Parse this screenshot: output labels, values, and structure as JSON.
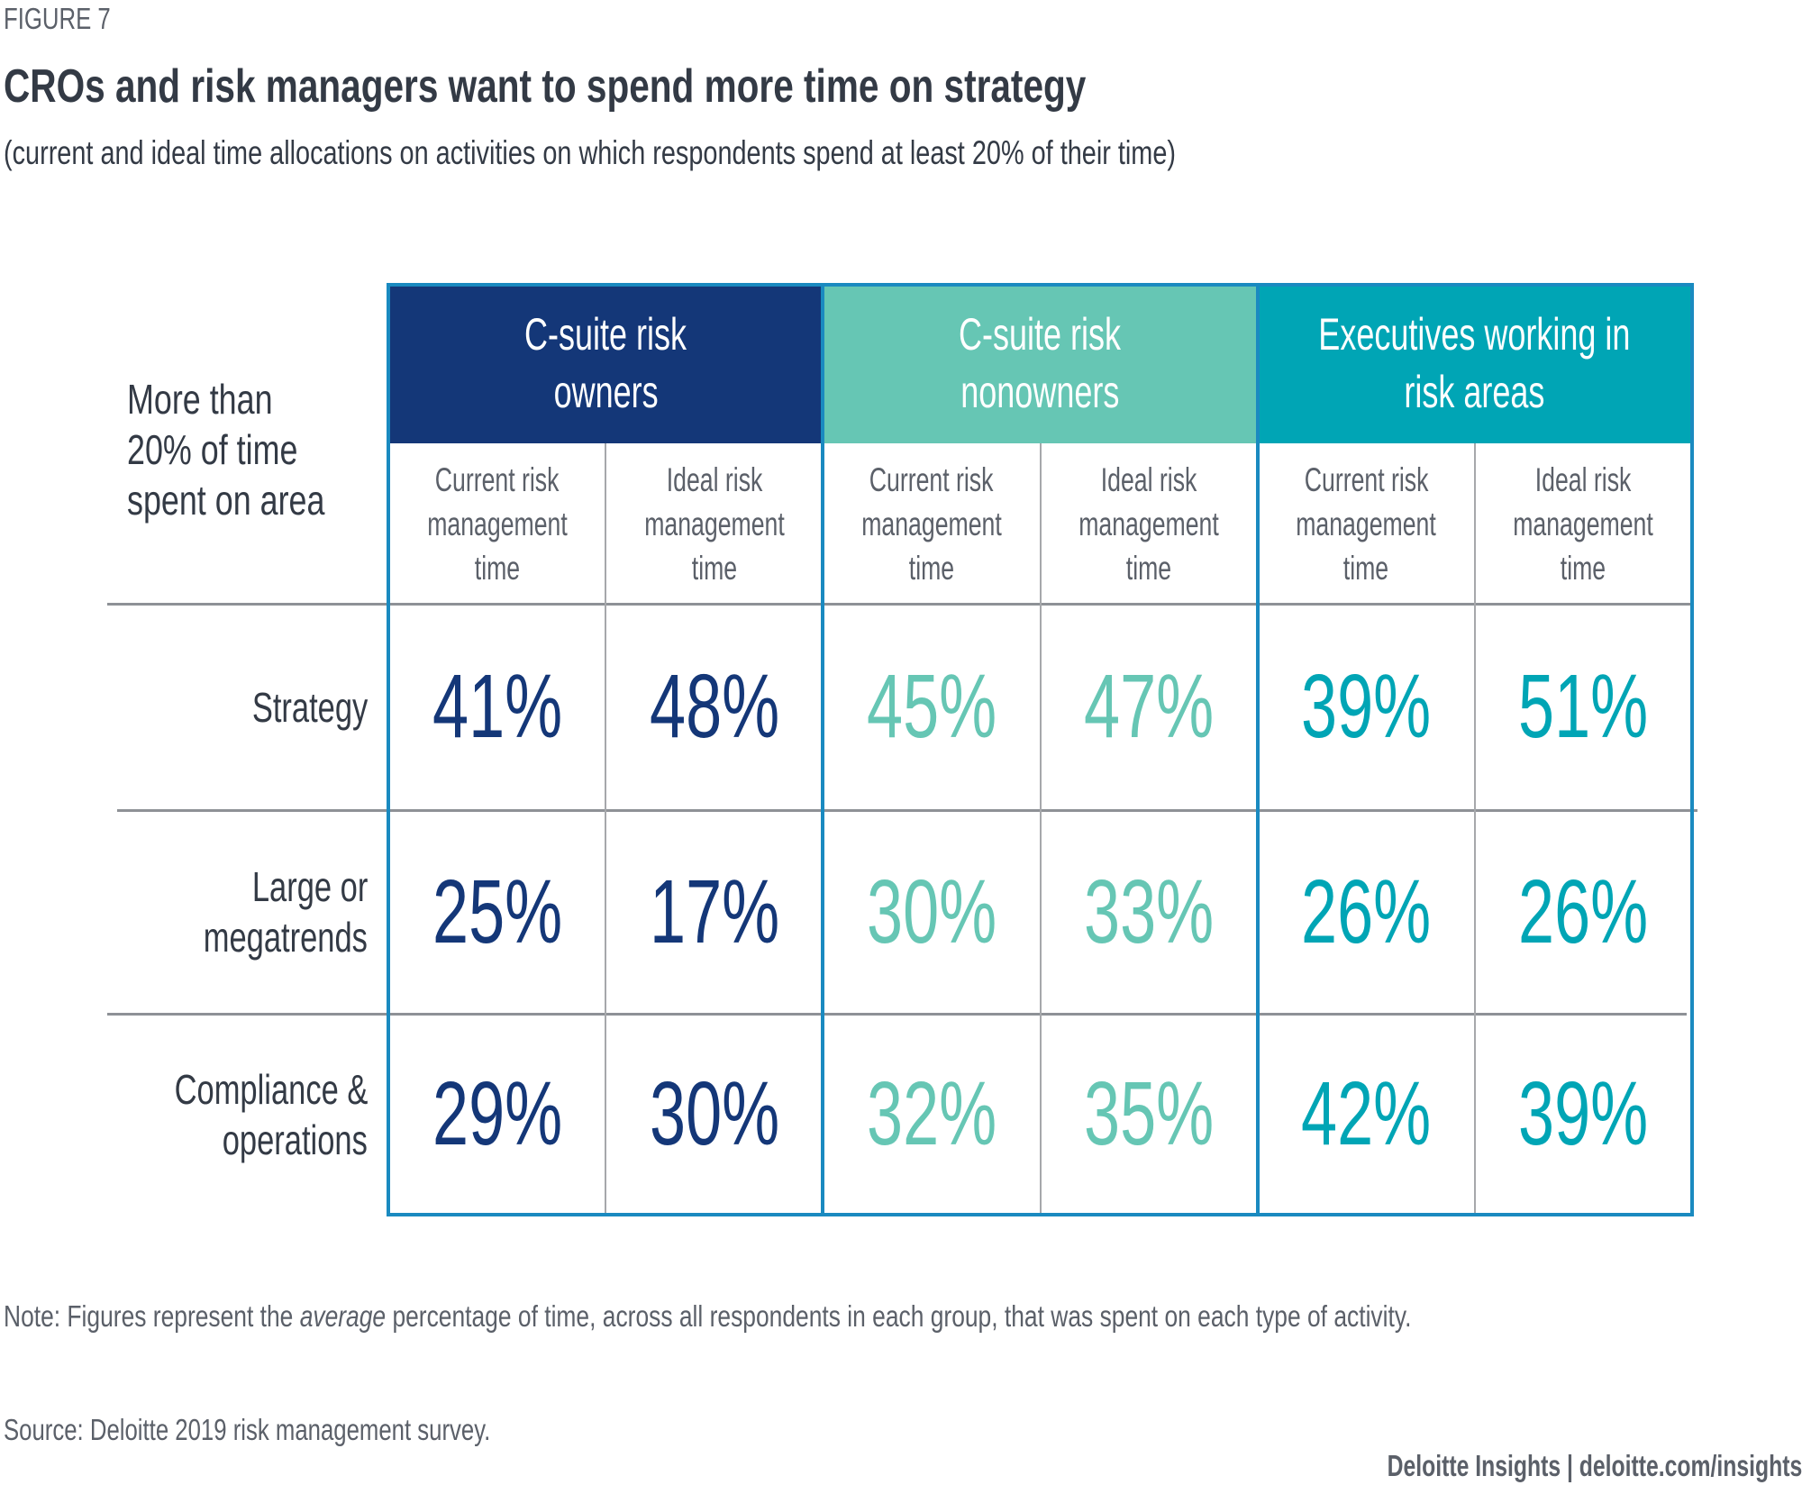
{
  "figure_label": "FIGURE 7",
  "title": "CROs and risk managers want to spend more time on strategy",
  "subtitle": "(current and ideal time allocations on activities on which respondents spend at least 20% of their time)",
  "stub_header_lines": [
    "More than",
    "20% of time",
    "spent on area"
  ],
  "colors": {
    "c_suite_owners": "#143778",
    "c_suite_nonowners": "#66c6b4",
    "executives_risk_areas": "#00a5b5",
    "border": "#1a8ac0"
  },
  "chart_data": {
    "type": "table",
    "title": "CROs and risk managers want to spend more time on strategy",
    "subtitle": "(current and ideal time allocations on activities on which respondents spend at least 20% of their time)",
    "row_header": "More than 20% of time spent on area",
    "groups": [
      {
        "name_lines": [
          "C-suite risk",
          "owners"
        ],
        "name": "C-suite risk owners",
        "color": "#143778"
      },
      {
        "name_lines": [
          "C-suite risk",
          "nonowners"
        ],
        "name": "C-suite risk nonowners",
        "color": "#66c6b4"
      },
      {
        "name_lines": [
          "Executives working in",
          "risk areas"
        ],
        "name": "Executives working in risk areas",
        "color": "#00a5b5"
      }
    ],
    "sub_columns": [
      {
        "lines": [
          "Current risk",
          "management",
          "time"
        ],
        "name": "Current risk management time"
      },
      {
        "lines": [
          "Ideal risk",
          "management",
          "time"
        ],
        "name": "Ideal risk management time"
      }
    ],
    "rows": [
      {
        "label_lines": [
          "Strategy"
        ],
        "label": "Strategy",
        "values": [
          41,
          48,
          45,
          47,
          39,
          51
        ]
      },
      {
        "label_lines": [
          "Large or",
          "megatrends"
        ],
        "label": "Large or megatrends",
        "values": [
          25,
          17,
          30,
          33,
          26,
          26
        ]
      },
      {
        "label_lines": [
          "Compliance &",
          "operations"
        ],
        "label": "Compliance & operations",
        "values": [
          29,
          30,
          32,
          35,
          42,
          39
        ]
      }
    ],
    "unit": "%"
  },
  "note_prefix": "Note: Figures represent the ",
  "note_italic": "average",
  "note_suffix": " percentage of time, across all respondents in each group, that was spent on each type of activity.",
  "source": "Source: Deloitte 2019 risk management survey.",
  "credit": "Deloitte Insights | deloitte.com/insights"
}
